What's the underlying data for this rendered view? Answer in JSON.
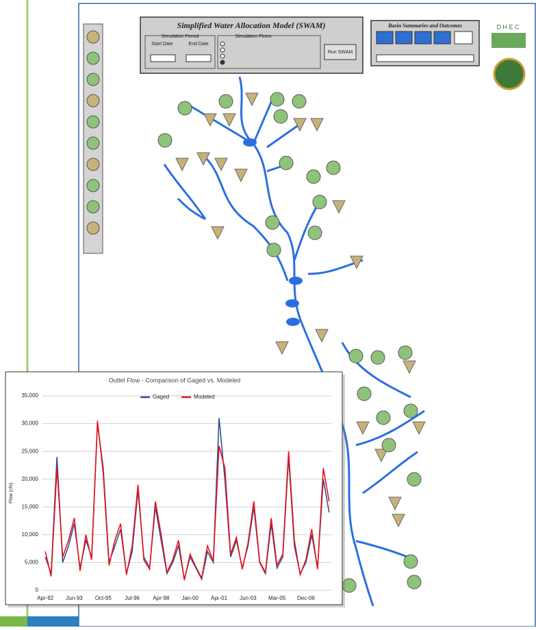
{
  "app": {
    "title": "Simplified Water Allocation Model (SWAM)",
    "period_group": "Simulation Period",
    "start_label": "Start Date",
    "end_label": "End Date",
    "flows_group": "Simulation Flows",
    "run_button": "Run SWAM",
    "summary_title": "Basin Summaries and Outcomes",
    "agency": "D H E C"
  },
  "chart_data": {
    "type": "line",
    "title": "Outlet Flow - Comparison of Gaged vs. Modeled",
    "y_label": "Flow (cfs)",
    "categories": [
      "Apr-92",
      null,
      null,
      null,
      null,
      "Jun-93",
      null,
      null,
      null,
      null,
      "Oct-95",
      null,
      null,
      null,
      null,
      "Jul-96",
      null,
      null,
      null,
      null,
      "Apr-98",
      null,
      null,
      null,
      null,
      "Jan-00",
      null,
      null,
      null,
      null,
      "Apr-01",
      null,
      null,
      null,
      null,
      "Jun-03",
      null,
      null,
      null,
      null,
      "Mar-05",
      null,
      null,
      null,
      null,
      "Dec-06",
      null,
      null,
      null,
      null
    ],
    "series": [
      {
        "name": "Gaged",
        "color": "#2f4f8f",
        "values": [
          6000,
          3000,
          24000,
          5000,
          8000,
          12000,
          4000,
          9000,
          6000,
          30000,
          22000,
          5000,
          8000,
          11000,
          3000,
          7000,
          18000,
          6000,
          4000,
          15000,
          9000,
          3000,
          5000,
          8000,
          2000,
          6000,
          4000,
          2000,
          7000,
          5000,
          31000,
          20000,
          6000,
          9000,
          4000,
          8000,
          15000,
          5000,
          3000,
          12000,
          4000,
          6000,
          24000,
          8000,
          3000,
          5000,
          10000,
          4000,
          20000,
          14000
        ]
      },
      {
        "name": "Modeled",
        "color": "#e8121a",
        "values": [
          7000,
          2500,
          22000,
          6000,
          9000,
          13000,
          3500,
          10000,
          5500,
          30500,
          21000,
          4500,
          9000,
          12000,
          2800,
          8000,
          19000,
          5500,
          3800,
          16000,
          10000,
          3200,
          5500,
          9000,
          1800,
          6500,
          4200,
          2200,
          8000,
          5200,
          26000,
          22000,
          6500,
          9500,
          3800,
          8500,
          16000,
          5200,
          3200,
          13000,
          4500,
          6500,
          25000,
          9000,
          2800,
          5500,
          11000,
          3800,
          22000,
          16000
        ]
      }
    ],
    "ylim": [
      0,
      35000
    ],
    "yticks": [
      0,
      {
        "value": 5000,
        "label": "5,000"
      },
      {
        "value": 10000,
        "label": "10,000"
      },
      {
        "value": 15000,
        "label": "15,000"
      },
      {
        "value": 20000,
        "label": "20,000"
      },
      {
        "value": 25000,
        "label": "25,000"
      },
      {
        "value": 30000,
        "label": "30,000"
      },
      {
        "value": 35000,
        "label": "35,000"
      }
    ],
    "grid": true,
    "legend": "top"
  }
}
